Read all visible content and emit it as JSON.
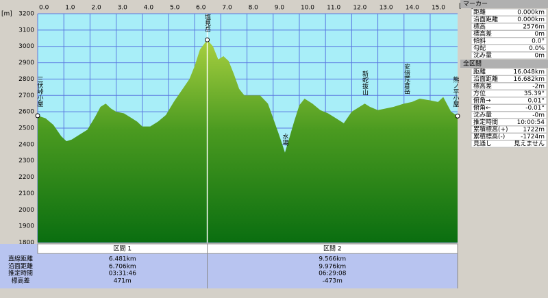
{
  "chart_data": {
    "type": "area",
    "y_unit": "[m]",
    "x_unit": "[km]",
    "x": [
      0,
      0.3,
      0.6,
      0.9,
      1.1,
      1.3,
      1.6,
      1.9,
      2.2,
      2.4,
      2.6,
      2.8,
      3.0,
      3.3,
      3.6,
      3.8,
      4.0,
      4.3,
      4.6,
      4.9,
      5.2,
      5.5,
      5.8,
      6.0,
      6.2,
      6.481,
      6.7,
      6.9,
      7.1,
      7.3,
      7.5,
      7.7,
      7.9,
      8.2,
      8.5,
      8.8,
      9.0,
      9.2,
      9.35,
      9.45,
      9.6,
      9.8,
      10.0,
      10.2,
      10.5,
      10.8,
      11.1,
      11.4,
      11.7,
      12.0,
      12.3,
      12.5,
      12.7,
      13.0,
      13.3,
      13.6,
      14.0,
      14.3,
      14.6,
      15.0,
      15.3,
      15.5,
      15.8,
      16.048
    ],
    "values": [
      2576,
      2560,
      2520,
      2450,
      2420,
      2430,
      2460,
      2490,
      2570,
      2630,
      2650,
      2620,
      2600,
      2590,
      2560,
      2540,
      2510,
      2510,
      2540,
      2580,
      2660,
      2730,
      2800,
      2880,
      2980,
      3040,
      3000,
      2920,
      2940,
      2910,
      2830,
      2740,
      2700,
      2700,
      2700,
      2650,
      2560,
      2470,
      2400,
      2350,
      2430,
      2540,
      2640,
      2680,
      2650,
      2610,
      2590,
      2560,
      2530,
      2600,
      2630,
      2650,
      2630,
      2610,
      2620,
      2630,
      2650,
      2660,
      2680,
      2670,
      2660,
      2690,
      2600,
      2574
    ],
    "xlim": [
      0,
      16.048
    ],
    "ylim": [
      1800,
      3200
    ],
    "xticks": [
      {
        "value": 0,
        "label": "0.0"
      },
      {
        "value": 1,
        "label": "1.0"
      },
      {
        "value": 2,
        "label": "2.0"
      },
      {
        "value": 3,
        "label": "3.0"
      },
      {
        "value": 4,
        "label": "4.0"
      },
      {
        "value": 5,
        "label": "5.0"
      },
      {
        "value": 6,
        "label": "6.0"
      },
      {
        "value": 7,
        "label": "7.0"
      },
      {
        "value": 8,
        "label": "8.0"
      },
      {
        "value": 9,
        "label": "9.0"
      },
      {
        "value": 10,
        "label": "10.0"
      },
      {
        "value": 11,
        "label": "11.0"
      },
      {
        "value": 12,
        "label": "12.0"
      },
      {
        "value": 13,
        "label": "13.0"
      },
      {
        "value": 14,
        "label": "14.0"
      },
      {
        "value": 15,
        "label": "15.0"
      }
    ],
    "yticks": [
      1800,
      1900,
      2000,
      2100,
      2200,
      2300,
      2400,
      2500,
      2600,
      2700,
      2800,
      2900,
      3000,
      3100,
      3200
    ],
    "grid": true,
    "annotations": [
      {
        "text": "三伏峠小屋",
        "x": 0
      },
      {
        "text": "塩見岳",
        "x": 6.481
      },
      {
        "text": "水場",
        "x": 9.45
      },
      {
        "text": "新蛇抜山",
        "x": 12.5
      },
      {
        "text": "安倍荒倉岳",
        "x": 14.1
      },
      {
        "text": "熊ノ平小屋",
        "x": 16.048
      }
    ]
  },
  "sections": {
    "row_labels": [
      "直線距離",
      "沿面距離",
      "推定時間",
      "標高差"
    ],
    "columns": [
      {
        "title": "区間 1",
        "end": 6.481,
        "cells": [
          "6.481km",
          "6.706km",
          "03:31:46",
          "471m"
        ]
      },
      {
        "title": "区間 2",
        "end": 16.048,
        "cells": [
          "9.566km",
          "9.976km",
          "06:29:08",
          "-473m"
        ]
      }
    ]
  },
  "marker_panel": {
    "title": "マーカー",
    "rows": [
      [
        "距離",
        "0.000km"
      ],
      [
        "沿面距離",
        "0.000km"
      ],
      [
        "標高",
        "2576m"
      ],
      [
        "標高差",
        "0m"
      ],
      [
        "傾斜",
        "0.0°"
      ],
      [
        "勾配",
        "0.0%"
      ],
      [
        "沈み量",
        "0m"
      ]
    ]
  },
  "total_panel": {
    "title": "全区間",
    "rows": [
      [
        "距離",
        "16.048km"
      ],
      [
        "沿面距離",
        "16.682km"
      ],
      [
        "標高差",
        "-2m"
      ],
      [
        "方位",
        "35.39°"
      ],
      [
        "俯角→",
        "0.01°"
      ],
      [
        "俯角←",
        "-0.01°"
      ],
      [
        "沈み量",
        "-0m"
      ],
      [
        "推定時間",
        "10:00:54"
      ],
      [
        "累積標高(+)",
        "1722m"
      ],
      [
        "累積標高(-)",
        "-1724m"
      ],
      [
        "見通し",
        "見えません"
      ]
    ]
  }
}
